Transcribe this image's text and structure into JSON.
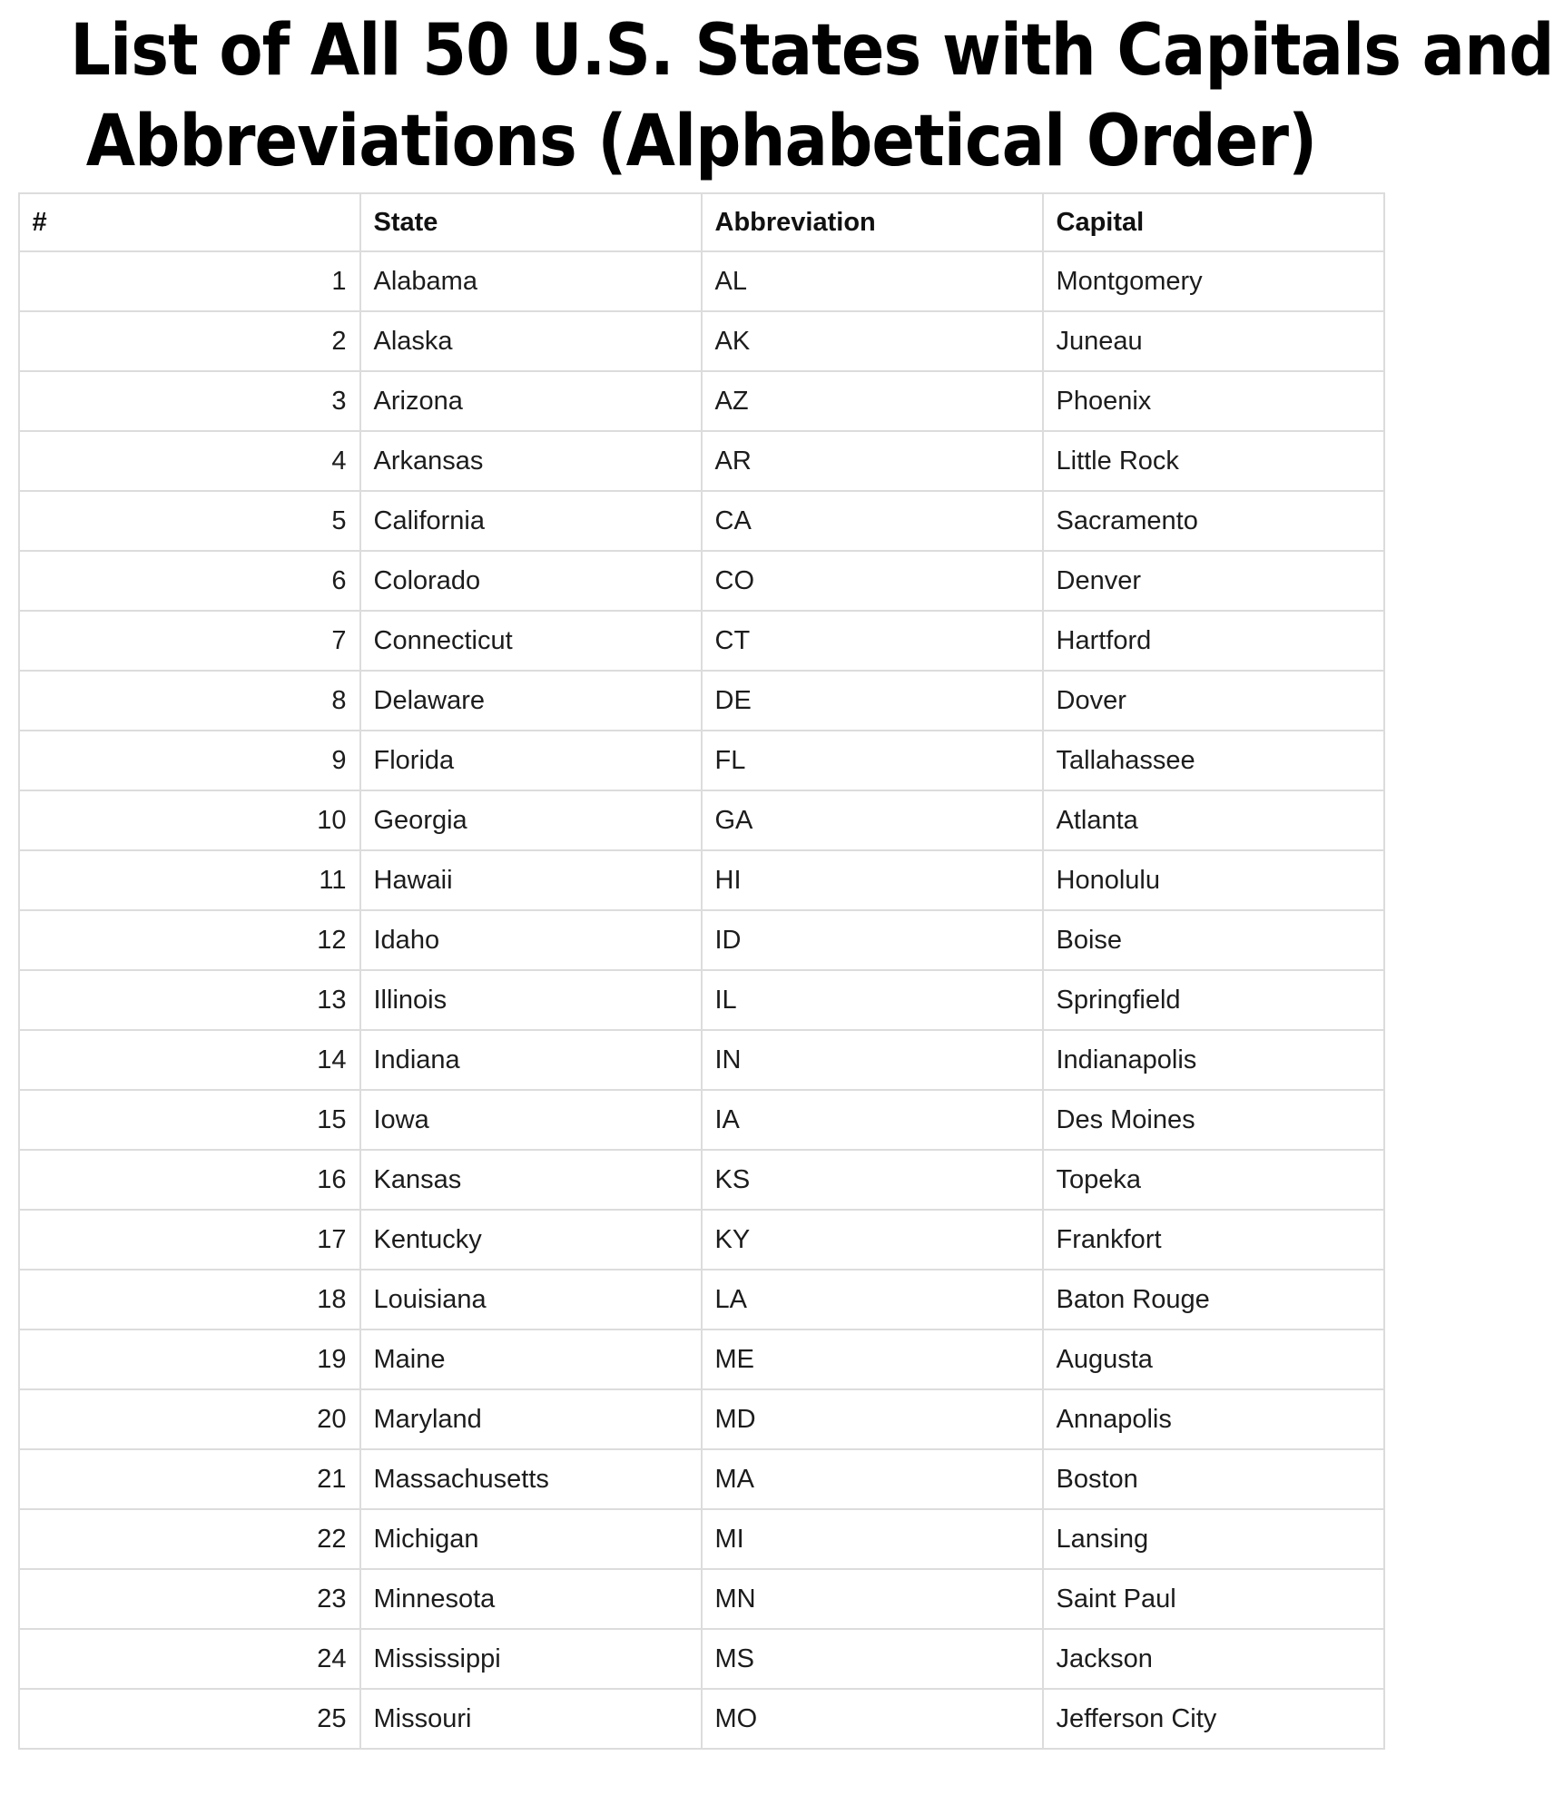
{
  "title": {
    "lines": [
      "List of All 50 U.S. States with Capitals and",
      "Abbreviations (Alphabetical Order)"
    ]
  },
  "table": {
    "headers": [
      "#",
      "State",
      "Abbreviation",
      "Capital"
    ],
    "rows": [
      [
        "1",
        "Alabama",
        "AL",
        "Montgomery"
      ],
      [
        "2",
        "Alaska",
        "AK",
        "Juneau"
      ],
      [
        "3",
        "Arizona",
        "AZ",
        "Phoenix"
      ],
      [
        "4",
        "Arkansas",
        "AR",
        "Little Rock"
      ],
      [
        "5",
        "California",
        "CA",
        "Sacramento"
      ],
      [
        "6",
        "Colorado",
        "CO",
        "Denver"
      ],
      [
        "7",
        "Connecticut",
        "CT",
        "Hartford"
      ],
      [
        "8",
        "Delaware",
        "DE",
        "Dover"
      ],
      [
        "9",
        "Florida",
        "FL",
        "Tallahassee"
      ],
      [
        "10",
        "Georgia",
        "GA",
        "Atlanta"
      ],
      [
        "11",
        "Hawaii",
        "HI",
        "Honolulu"
      ],
      [
        "12",
        "Idaho",
        "ID",
        "Boise"
      ],
      [
        "13",
        "Illinois",
        "IL",
        "Springfield"
      ],
      [
        "14",
        "Indiana",
        "IN",
        "Indianapolis"
      ],
      [
        "15",
        "Iowa",
        "IA",
        "Des Moines"
      ],
      [
        "16",
        "Kansas",
        "KS",
        "Topeka"
      ],
      [
        "17",
        "Kentucky",
        "KY",
        "Frankfort"
      ],
      [
        "18",
        "Louisiana",
        "LA",
        "Baton Rouge"
      ],
      [
        "19",
        "Maine",
        "ME",
        "Augusta"
      ],
      [
        "20",
        "Maryland",
        "MD",
        "Annapolis"
      ],
      [
        "21",
        "Massachusetts",
        "MA",
        "Boston"
      ],
      [
        "22",
        "Michigan",
        "MI",
        "Lansing"
      ],
      [
        "23",
        "Minnesota",
        "MN",
        "Saint Paul"
      ],
      [
        "24",
        "Mississippi",
        "MS",
        "Jackson"
      ],
      [
        "25",
        "Missouri",
        "MO",
        "Jefferson City"
      ]
    ]
  },
  "colors": {
    "background": "#ffffff",
    "title_text": "#000000",
    "body_text": "#1c1c1c",
    "border": "#dcdcdc"
  }
}
